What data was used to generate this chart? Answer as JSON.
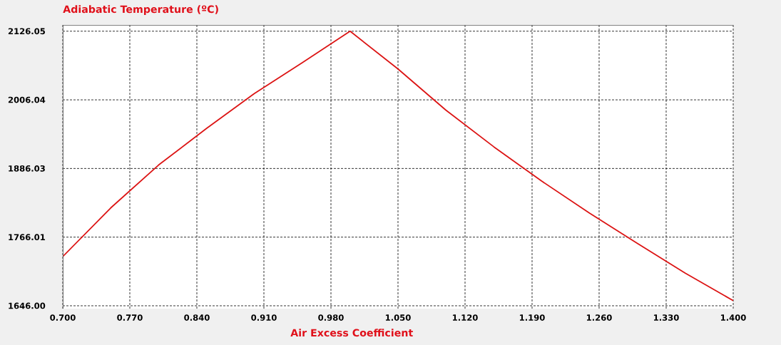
{
  "chart_data": {
    "type": "line",
    "title": "Adiabatic Temperature (ºC)",
    "xlabel": "Air Excess Coefficient",
    "x": [
      0.7,
      0.75,
      0.8,
      0.85,
      0.9,
      0.95,
      1.0,
      1.05,
      1.1,
      1.15,
      1.2,
      1.25,
      1.3,
      1.35,
      1.4
    ],
    "series": [
      {
        "color": "#dc1414",
        "values": [
          1732,
          1817,
          1892,
          1956,
          2017,
          2071,
          2126,
          2060,
          1988,
          1924,
          1864,
          1808,
          1755,
          1703,
          1655
        ]
      }
    ],
    "xlim": [
      0.7,
      1.4
    ],
    "ylim": [
      1641,
      2137
    ],
    "xticks": [
      {
        "value": 0.7,
        "label": "0.700"
      },
      {
        "value": 0.77,
        "label": "0.770"
      },
      {
        "value": 0.84,
        "label": "0.840"
      },
      {
        "value": 0.91,
        "label": "0.910"
      },
      {
        "value": 0.98,
        "label": "0.980"
      },
      {
        "value": 1.05,
        "label": "1.050"
      },
      {
        "value": 1.12,
        "label": "1.120"
      },
      {
        "value": 1.19,
        "label": "1.190"
      },
      {
        "value": 1.26,
        "label": "1.260"
      },
      {
        "value": 1.33,
        "label": "1.330"
      },
      {
        "value": 1.4,
        "label": "1.400"
      }
    ],
    "yticks": [
      {
        "value": 1646,
        "label": "1646.00"
      },
      1766.01,
      1886.03,
      2006.04,
      2126.05
    ],
    "grid": true
  }
}
